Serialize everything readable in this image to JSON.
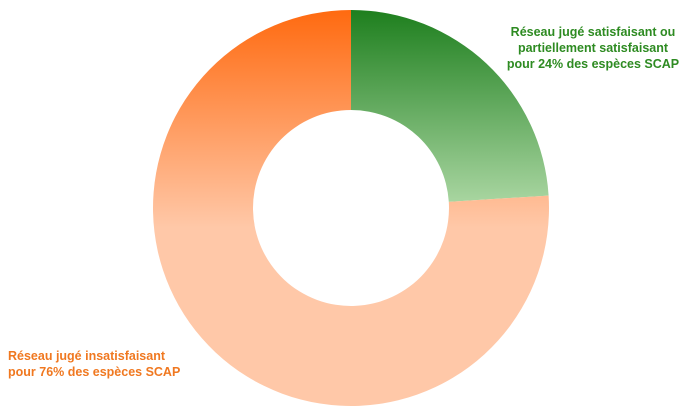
{
  "chart_data": {
    "type": "pie",
    "variant": "donut",
    "slices": [
      {
        "key": "satisfaisant",
        "value": 24,
        "unit": "%",
        "label_lines": [
          "Réseau jugé satisfaisant ou",
          "partiellement satisfaisant",
          "pour 24% des espèces SCAP"
        ],
        "color_dark": "#1e7f1e",
        "color_light": "#a8d5a0",
        "label_color": "#2e8b22"
      },
      {
        "key": "insatisfaisant",
        "value": 76,
        "unit": "%",
        "label_lines": [
          "Réseau jugé insatisfaisant",
          "pour 76% des espèces SCAP"
        ],
        "color_dark": "#ff6a10",
        "color_light": "#ffc8a8",
        "label_color": "#f07820"
      }
    ],
    "start": "top",
    "direction": "clockwise",
    "legend": "none"
  }
}
